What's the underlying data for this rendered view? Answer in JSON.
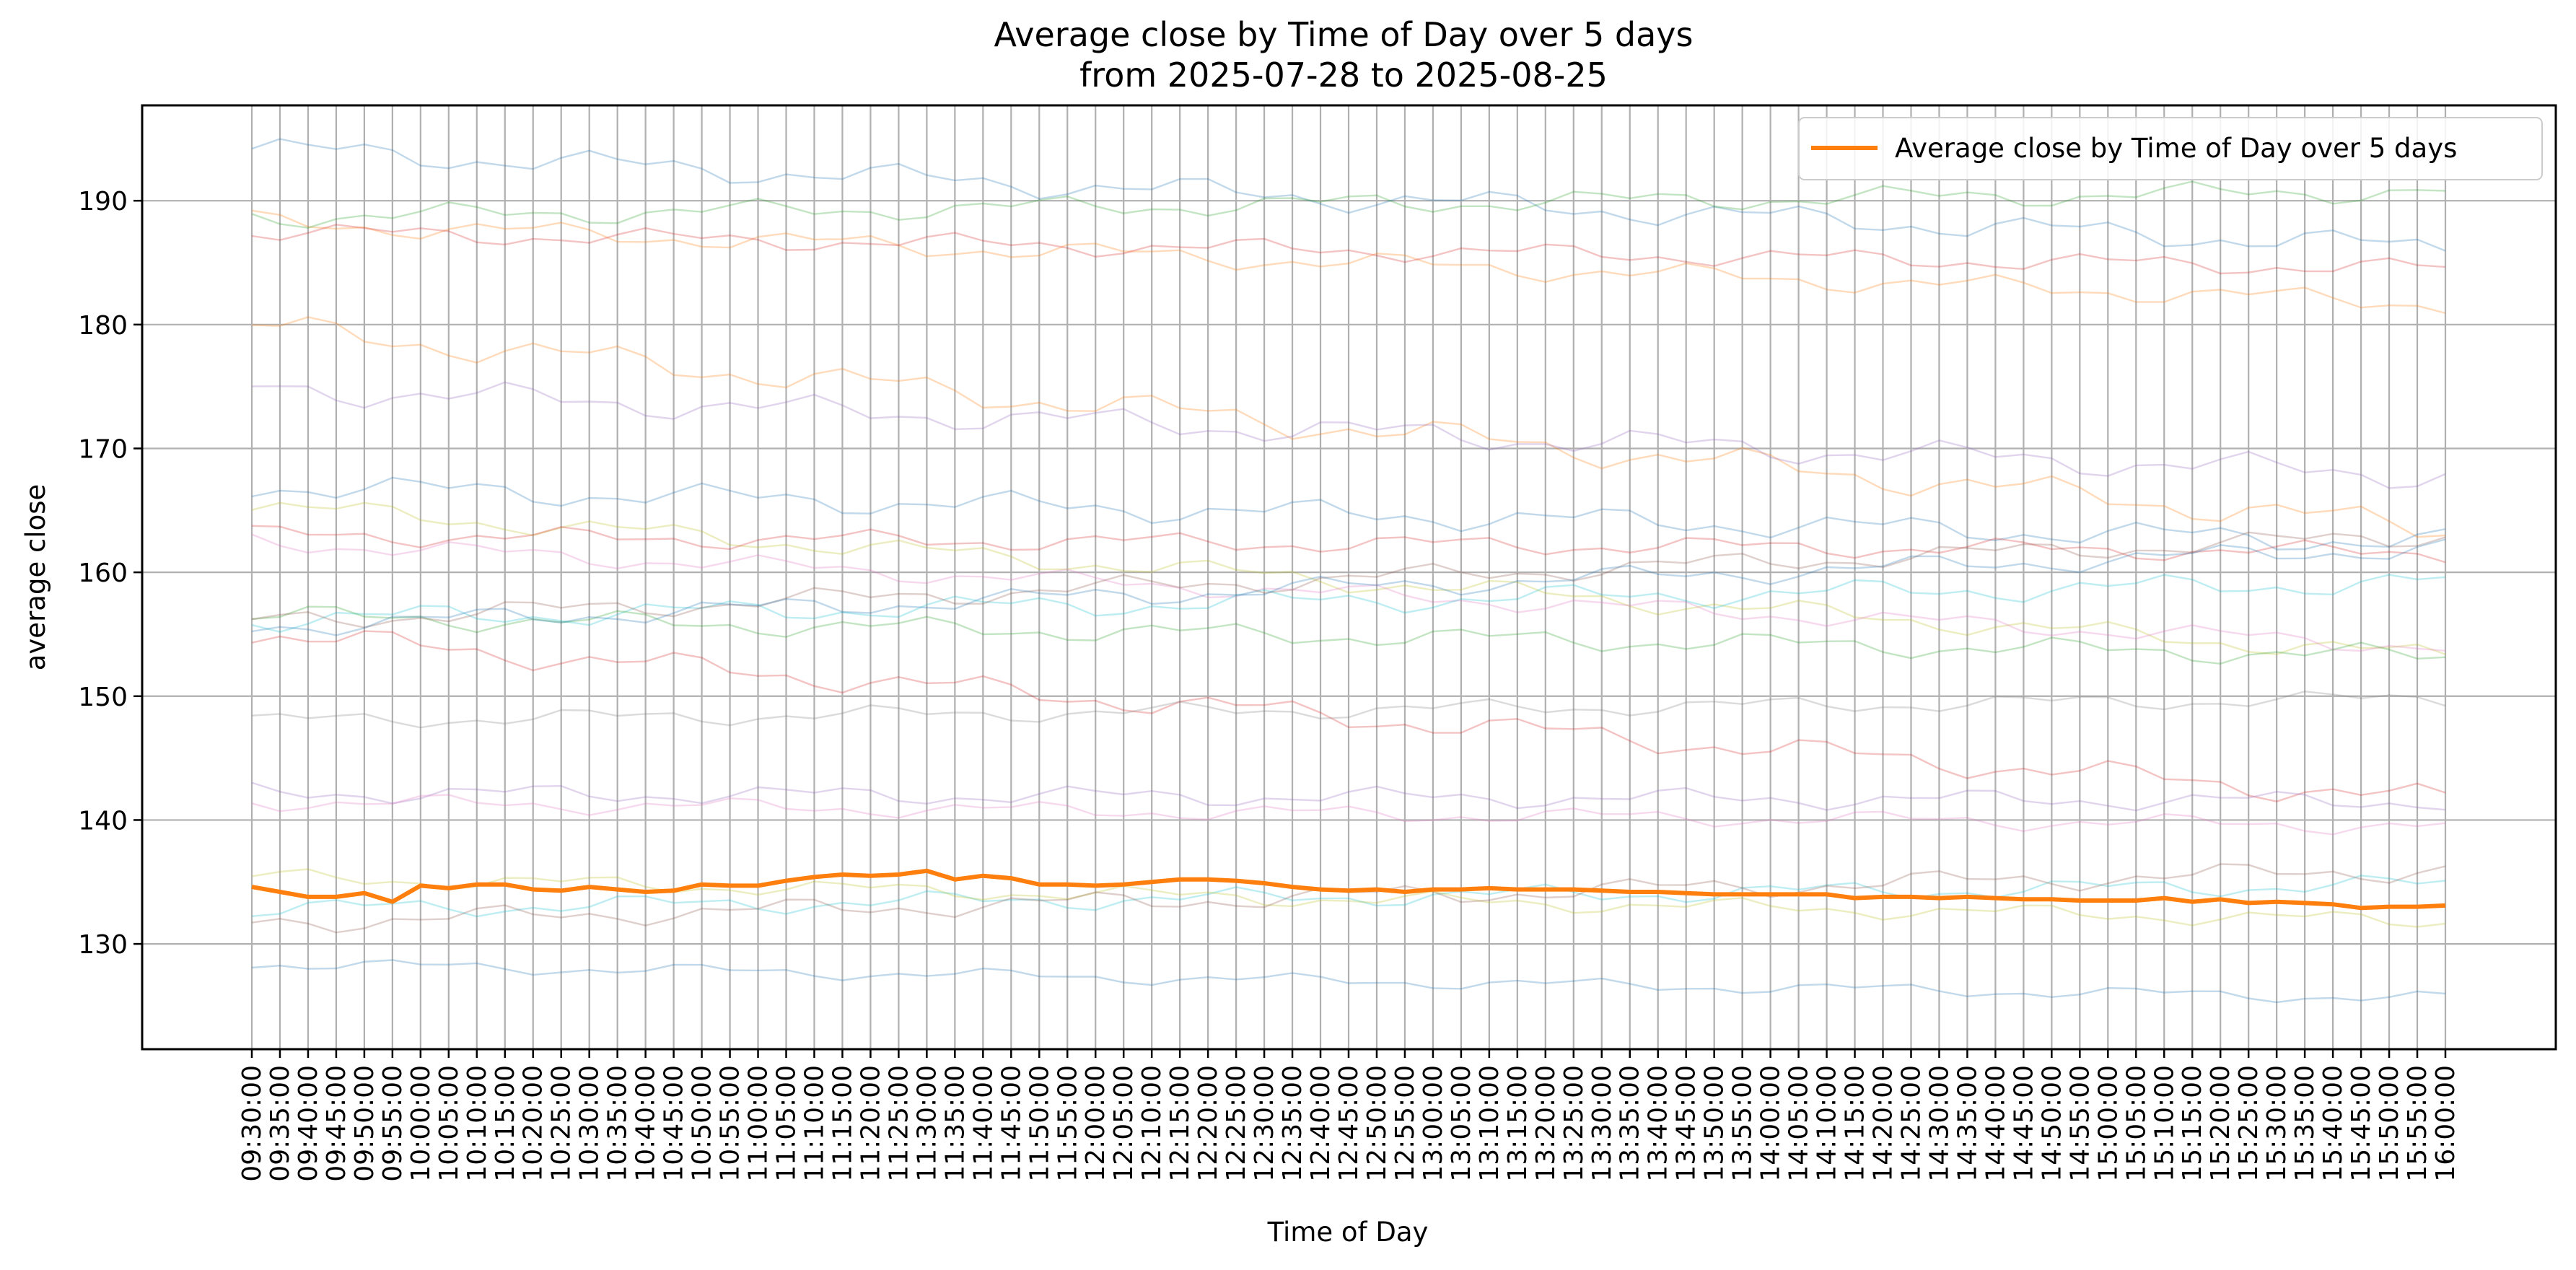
{
  "chart_data": {
    "type": "line",
    "title": "Average close by Time of Day over 5 days",
    "subtitle": "from 2025-07-28 to 2025-08-25",
    "xlabel": "Time of Day",
    "ylabel": "average close",
    "ylim": [
      121.5,
      197.7
    ],
    "yticks": [
      130,
      140,
      150,
      160,
      170,
      180,
      190
    ],
    "grid": true,
    "legend": {
      "placement": "top-right",
      "entries": [
        "Average close by Time of Day over 5 days"
      ]
    },
    "colors": {
      "main": "#ff7f0e",
      "background_palette": [
        "#1f77b4",
        "#ff7f0e",
        "#2ca02c",
        "#d62728",
        "#17becf",
        "#bcbd22",
        "#9467bd",
        "#8c564b",
        "#e377c2",
        "#7f7f7f"
      ]
    },
    "x": [
      "09:30:00",
      "09:35:00",
      "09:40:00",
      "09:45:00",
      "09:50:00",
      "09:55:00",
      "10:00:00",
      "10:05:00",
      "10:10:00",
      "10:15:00",
      "10:20:00",
      "10:25:00",
      "10:30:00",
      "10:35:00",
      "10:40:00",
      "10:45:00",
      "10:50:00",
      "10:55:00",
      "11:00:00",
      "11:05:00",
      "11:10:00",
      "11:15:00",
      "11:20:00",
      "11:25:00",
      "11:30:00",
      "11:35:00",
      "11:40:00",
      "11:45:00",
      "11:50:00",
      "11:55:00",
      "12:00:00",
      "12:05:00",
      "12:10:00",
      "12:15:00",
      "12:20:00",
      "12:25:00",
      "12:30:00",
      "12:35:00",
      "12:40:00",
      "12:45:00",
      "12:50:00",
      "12:55:00",
      "13:00:00",
      "13:05:00",
      "13:10:00",
      "13:15:00",
      "13:20:00",
      "13:25:00",
      "13:30:00",
      "13:35:00",
      "13:40:00",
      "13:45:00",
      "13:50:00",
      "13:55:00",
      "14:00:00",
      "14:05:00",
      "14:10:00",
      "14:15:00",
      "14:20:00",
      "14:25:00",
      "14:30:00",
      "14:35:00",
      "14:40:00",
      "14:45:00",
      "14:50:00",
      "14:55:00",
      "15:00:00",
      "15:05:00",
      "15:10:00",
      "15:15:00",
      "15:20:00",
      "15:25:00",
      "15:30:00",
      "15:35:00",
      "15:40:00",
      "15:45:00",
      "15:50:00",
      "15:55:00",
      "16:00:00"
    ],
    "series": [
      {
        "name": "Average close by Time of Day over 5 days",
        "values": [
          134.6,
          134.2,
          133.8,
          133.8,
          134.1,
          133.4,
          134.7,
          134.5,
          134.8,
          134.8,
          134.4,
          134.3,
          134.6,
          134.4,
          134.2,
          134.3,
          134.8,
          134.7,
          134.7,
          135.1,
          135.4,
          135.6,
          135.5,
          135.6,
          135.9,
          135.2,
          135.5,
          135.3,
          134.8,
          134.8,
          134.7,
          134.8,
          135.0,
          135.2,
          135.2,
          135.1,
          134.9,
          134.6,
          134.4,
          134.3,
          134.4,
          134.2,
          134.4,
          134.4,
          134.5,
          134.4,
          134.4,
          134.4,
          134.3,
          134.2,
          134.2,
          134.1,
          134.0,
          134.0,
          134.0,
          134.0,
          134.0,
          133.7,
          133.8,
          133.8,
          133.7,
          133.8,
          133.7,
          133.6,
          133.6,
          133.5,
          133.5,
          133.5,
          133.7,
          133.4,
          133.6,
          133.3,
          133.4,
          133.3,
          133.2,
          132.9,
          133.0,
          133.0,
          133.1
        ]
      }
    ],
    "background_series": [
      {
        "color": "#1f77b4",
        "start": 194.2,
        "end": 186.2,
        "amp": 1.2
      },
      {
        "color": "#ff7f0e",
        "start": 188.3,
        "end": 181.7,
        "amp": 1.0
      },
      {
        "color": "#2ca02c",
        "start": 188.7,
        "end": 190.8,
        "amp": 1.0
      },
      {
        "color": "#d62728",
        "start": 187.5,
        "end": 184.5,
        "amp": 0.9
      },
      {
        "color": "#ff7f0e",
        "start": 179.8,
        "end": 163.5,
        "amp": 1.4
      },
      {
        "color": "#9467bd",
        "start": 174.9,
        "end": 167.8,
        "amp": 1.3
      },
      {
        "color": "#1f77b4",
        "start": 167.0,
        "end": 162.4,
        "amp": 1.2
      },
      {
        "color": "#bcbd22",
        "start": 165.4,
        "end": 153.2,
        "amp": 1.0
      },
      {
        "color": "#d62728",
        "start": 163.0,
        "end": 161.6,
        "amp": 0.9
      },
      {
        "color": "#e377c2",
        "start": 162.5,
        "end": 154.0,
        "amp": 0.9
      },
      {
        "color": "#17becf",
        "start": 156.2,
        "end": 159.2,
        "amp": 1.1
      },
      {
        "color": "#2ca02c",
        "start": 156.5,
        "end": 153.2,
        "amp": 1.0
      },
      {
        "color": "#8c564b",
        "start": 156.0,
        "end": 163.0,
        "amp": 1.0
      },
      {
        "color": "#1f77b4",
        "start": 155.6,
        "end": 162.0,
        "amp": 1.0
      },
      {
        "color": "#d62728",
        "start": 155.0,
        "end": 141.6,
        "amp": 1.2
      },
      {
        "color": "#7f7f7f",
        "start": 148.0,
        "end": 149.8,
        "amp": 0.8
      },
      {
        "color": "#9467bd",
        "start": 142.2,
        "end": 141.5,
        "amp": 0.9
      },
      {
        "color": "#e377c2",
        "start": 141.5,
        "end": 139.5,
        "amp": 0.8
      },
      {
        "color": "#17becf",
        "start": 132.8,
        "end": 134.8,
        "amp": 0.9
      },
      {
        "color": "#bcbd22",
        "start": 135.4,
        "end": 131.8,
        "amp": 0.8
      },
      {
        "color": "#8c564b",
        "start": 131.7,
        "end": 136.0,
        "amp": 1.0
      },
      {
        "color": "#1f77b4",
        "start": 128.4,
        "end": 125.6,
        "amp": 0.6
      }
    ]
  }
}
